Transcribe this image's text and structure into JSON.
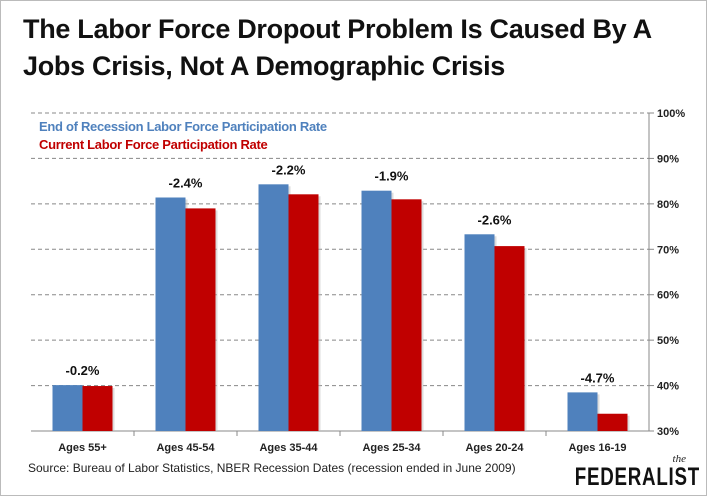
{
  "chart_data": {
    "type": "bar",
    "title": "The Labor Force Dropout Problem Is Caused By A Jobs Crisis, Not A Demographic Crisis",
    "categories": [
      "Ages 55+",
      "Ages 45-54",
      "Ages 35-44",
      "Ages 25-34",
      "Ages 20-24",
      "Ages 16-19"
    ],
    "series": [
      {
        "name": "End of Recession Labor Force Participation Rate",
        "color": "#4f81bd",
        "values": [
          40.1,
          81.4,
          84.3,
          82.9,
          73.3,
          38.5
        ]
      },
      {
        "name": "Current Labor Force Participation Rate",
        "color": "#c00000",
        "values": [
          39.9,
          79.0,
          82.1,
          81.0,
          70.7,
          33.8
        ]
      }
    ],
    "data_labels": [
      "-0.2%",
      "-2.4%",
      "-2.2%",
      "-1.9%",
      "-2.6%",
      "-4.7%"
    ],
    "ylim": [
      30,
      100
    ],
    "yticks": [
      "30%",
      "40%",
      "50%",
      "60%",
      "70%",
      "80%",
      "90%",
      "100%"
    ],
    "ytick_values": [
      30,
      40,
      50,
      60,
      70,
      80,
      90,
      100
    ],
    "y_axis_side": "right",
    "grid": true,
    "legend_placement": "top-left",
    "source": "Source: Bureau of Labor Statistics,  NBER Recession Dates (recession ended in June 2009)"
  },
  "logo": {
    "small": "the",
    "name": "FEDERALIST"
  }
}
